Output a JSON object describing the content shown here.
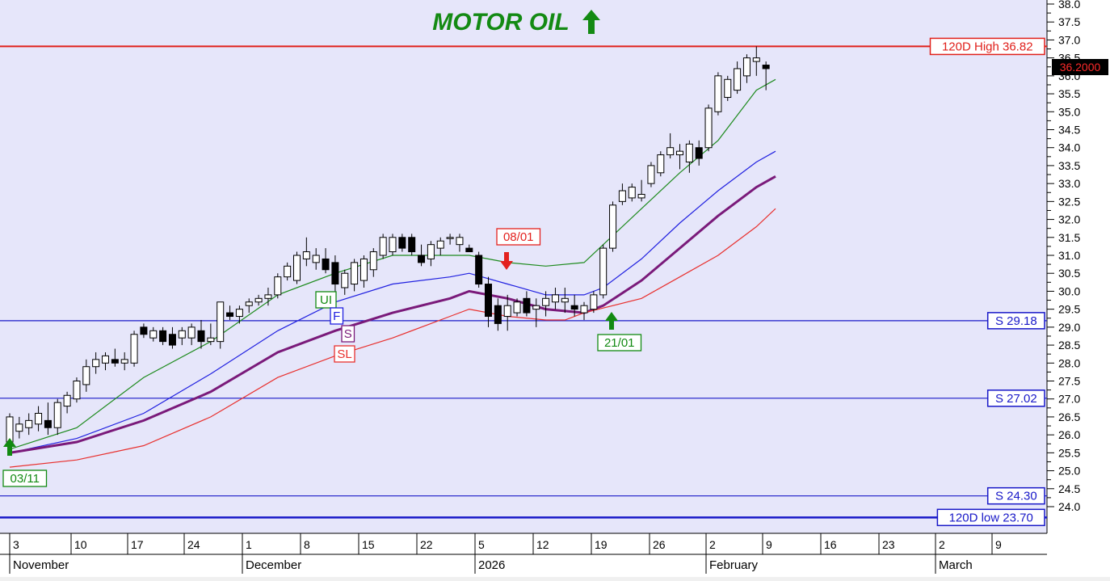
{
  "colors": {
    "plot_bg": "#e6e6fa",
    "high_line": "#e0201b",
    "support_line": "#1818c8",
    "ema_fast": "#1e8b1e",
    "ema_mid": "#2020e0",
    "ema_slow": "#7a1a7a",
    "stop_loss": "#e8302e",
    "buy_arrow": "#128a12",
    "sell_arrow": "#e3211e"
  },
  "chart_data": {
    "type": "candlestick",
    "title": "MOTOR OIL",
    "title_arrow": "up-arrow-icon",
    "ylim": [
      23.2,
      38.0
    ],
    "y_ticks": [
      "24.0",
      "24.5",
      "25.0",
      "25.5",
      "26.0",
      "26.5",
      "27.0",
      "27.5",
      "28.0",
      "28.5",
      "29.0",
      "29.5",
      "30.0",
      "30.5",
      "31.0",
      "31.5",
      "32.0",
      "32.5",
      "33.0",
      "33.5",
      "34.0",
      "34.5",
      "35.0",
      "35.5",
      "36.0",
      "36.5",
      "37.0",
      "37.5",
      "38.0"
    ],
    "x_day_labels": [
      "3",
      "10",
      "17",
      "24",
      "1",
      "8",
      "15",
      "22",
      "5",
      "12",
      "19",
      "26",
      "2",
      "9",
      "16",
      "23",
      "2",
      "9"
    ],
    "x_month_labels": [
      "November",
      "December",
      "2026",
      "February",
      "March"
    ],
    "last_price_label": "36.2000",
    "candles": [
      {
        "o": 25.8,
        "h": 26.6,
        "l": 25.6,
        "c": 26.5
      },
      {
        "o": 26.1,
        "h": 26.5,
        "l": 25.9,
        "c": 26.3
      },
      {
        "o": 26.2,
        "h": 26.6,
        "l": 26.0,
        "c": 26.4
      },
      {
        "o": 26.3,
        "h": 26.8,
        "l": 26.1,
        "c": 26.6
      },
      {
        "o": 26.4,
        "h": 26.9,
        "l": 26.0,
        "c": 26.2
      },
      {
        "o": 26.2,
        "h": 27.0,
        "l": 26.0,
        "c": 26.9
      },
      {
        "o": 26.8,
        "h": 27.2,
        "l": 26.6,
        "c": 27.1
      },
      {
        "o": 27.0,
        "h": 27.6,
        "l": 26.9,
        "c": 27.5
      },
      {
        "o": 27.4,
        "h": 28.1,
        "l": 27.2,
        "c": 27.9
      },
      {
        "o": 27.9,
        "h": 28.3,
        "l": 27.7,
        "c": 28.1
      },
      {
        "o": 28.0,
        "h": 28.3,
        "l": 27.8,
        "c": 28.2
      },
      {
        "o": 28.1,
        "h": 28.4,
        "l": 27.9,
        "c": 28.0
      },
      {
        "o": 28.0,
        "h": 28.3,
        "l": 27.8,
        "c": 28.1
      },
      {
        "o": 28.0,
        "h": 28.9,
        "l": 27.9,
        "c": 28.8
      },
      {
        "o": 29.0,
        "h": 29.1,
        "l": 28.7,
        "c": 28.8
      },
      {
        "o": 28.7,
        "h": 29.0,
        "l": 28.6,
        "c": 28.9
      },
      {
        "o": 28.9,
        "h": 29.0,
        "l": 28.5,
        "c": 28.6
      },
      {
        "o": 28.8,
        "h": 29.0,
        "l": 28.4,
        "c": 28.5
      },
      {
        "o": 28.7,
        "h": 29.0,
        "l": 28.5,
        "c": 28.9
      },
      {
        "o": 28.7,
        "h": 29.1,
        "l": 28.5,
        "c": 29.0
      },
      {
        "o": 28.9,
        "h": 29.2,
        "l": 28.4,
        "c": 28.6
      },
      {
        "o": 28.6,
        "h": 29.1,
        "l": 28.5,
        "c": 28.7
      },
      {
        "o": 28.6,
        "h": 29.7,
        "l": 28.4,
        "c": 29.7
      },
      {
        "o": 29.4,
        "h": 29.6,
        "l": 29.2,
        "c": 29.3
      },
      {
        "o": 29.3,
        "h": 29.6,
        "l": 29.1,
        "c": 29.5
      },
      {
        "o": 29.6,
        "h": 29.8,
        "l": 29.4,
        "c": 29.7
      },
      {
        "o": 29.7,
        "h": 29.9,
        "l": 29.6,
        "c": 29.8
      },
      {
        "o": 29.8,
        "h": 30.1,
        "l": 29.6,
        "c": 29.9
      },
      {
        "o": 29.9,
        "h": 30.5,
        "l": 29.8,
        "c": 30.4
      },
      {
        "o": 30.4,
        "h": 30.8,
        "l": 30.3,
        "c": 30.7
      },
      {
        "o": 30.3,
        "h": 31.1,
        "l": 30.2,
        "c": 31.0
      },
      {
        "o": 30.9,
        "h": 31.5,
        "l": 30.7,
        "c": 31.1
      },
      {
        "o": 30.8,
        "h": 31.2,
        "l": 30.6,
        "c": 31.0
      },
      {
        "o": 30.9,
        "h": 31.2,
        "l": 30.5,
        "c": 30.6
      },
      {
        "o": 30.8,
        "h": 31.0,
        "l": 29.6,
        "c": 30.2
      },
      {
        "o": 30.1,
        "h": 30.6,
        "l": 29.9,
        "c": 30.5
      },
      {
        "o": 30.2,
        "h": 30.9,
        "l": 30.0,
        "c": 30.8
      },
      {
        "o": 30.3,
        "h": 31.0,
        "l": 30.1,
        "c": 30.9
      },
      {
        "o": 30.6,
        "h": 31.2,
        "l": 30.4,
        "c": 31.1
      },
      {
        "o": 31.0,
        "h": 31.6,
        "l": 30.9,
        "c": 31.5
      },
      {
        "o": 31.1,
        "h": 31.6,
        "l": 31.0,
        "c": 31.5
      },
      {
        "o": 31.5,
        "h": 31.6,
        "l": 31.1,
        "c": 31.2
      },
      {
        "o": 31.5,
        "h": 31.6,
        "l": 31.0,
        "c": 31.1
      },
      {
        "o": 31.0,
        "h": 31.3,
        "l": 30.7,
        "c": 30.8
      },
      {
        "o": 30.9,
        "h": 31.4,
        "l": 30.7,
        "c": 31.3
      },
      {
        "o": 31.2,
        "h": 31.5,
        "l": 31.0,
        "c": 31.4
      },
      {
        "o": 31.5,
        "h": 31.6,
        "l": 31.3,
        "c": 31.5
      },
      {
        "o": 31.3,
        "h": 31.6,
        "l": 31.1,
        "c": 31.5
      },
      {
        "o": 31.2,
        "h": 31.3,
        "l": 31.1,
        "c": 31.1
      },
      {
        "o": 31.0,
        "h": 31.1,
        "l": 30.1,
        "c": 30.2
      },
      {
        "o": 30.2,
        "h": 30.4,
        "l": 29.0,
        "c": 29.3
      },
      {
        "o": 29.6,
        "h": 29.8,
        "l": 28.9,
        "c": 29.1
      },
      {
        "o": 29.3,
        "h": 29.9,
        "l": 28.9,
        "c": 29.6
      },
      {
        "o": 29.4,
        "h": 29.8,
        "l": 29.3,
        "c": 29.7
      },
      {
        "o": 29.8,
        "h": 30.0,
        "l": 29.3,
        "c": 29.4
      },
      {
        "o": 29.5,
        "h": 29.8,
        "l": 29.0,
        "c": 29.6
      },
      {
        "o": 29.6,
        "h": 30.0,
        "l": 29.3,
        "c": 29.8
      },
      {
        "o": 29.7,
        "h": 30.1,
        "l": 29.5,
        "c": 29.9
      },
      {
        "o": 29.7,
        "h": 30.1,
        "l": 29.4,
        "c": 29.8
      },
      {
        "o": 29.6,
        "h": 29.9,
        "l": 29.3,
        "c": 29.5
      },
      {
        "o": 29.4,
        "h": 29.7,
        "l": 29.2,
        "c": 29.6
      },
      {
        "o": 29.5,
        "h": 30.0,
        "l": 29.4,
        "c": 29.9
      },
      {
        "o": 29.9,
        "h": 31.3,
        "l": 29.8,
        "c": 31.2
      },
      {
        "o": 31.2,
        "h": 32.5,
        "l": 31.1,
        "c": 32.4
      },
      {
        "o": 32.5,
        "h": 33.0,
        "l": 32.4,
        "c": 32.8
      },
      {
        "o": 32.6,
        "h": 33.0,
        "l": 32.5,
        "c": 32.9
      },
      {
        "o": 32.6,
        "h": 33.1,
        "l": 32.5,
        "c": 32.7
      },
      {
        "o": 33.0,
        "h": 33.6,
        "l": 32.9,
        "c": 33.5
      },
      {
        "o": 33.3,
        "h": 33.9,
        "l": 33.2,
        "c": 33.8
      },
      {
        "o": 33.8,
        "h": 34.4,
        "l": 33.7,
        "c": 34.0
      },
      {
        "o": 33.8,
        "h": 34.1,
        "l": 33.4,
        "c": 33.9
      },
      {
        "o": 33.6,
        "h": 34.2,
        "l": 33.3,
        "c": 34.1
      },
      {
        "o": 34.0,
        "h": 34.2,
        "l": 33.5,
        "c": 33.7
      },
      {
        "o": 34.0,
        "h": 35.2,
        "l": 33.9,
        "c": 35.1
      },
      {
        "o": 35.0,
        "h": 36.1,
        "l": 34.9,
        "c": 36.0
      },
      {
        "o": 35.4,
        "h": 36.0,
        "l": 35.3,
        "c": 35.9
      },
      {
        "o": 35.6,
        "h": 36.4,
        "l": 35.5,
        "c": 36.2
      },
      {
        "o": 36.0,
        "h": 36.6,
        "l": 35.8,
        "c": 36.5
      },
      {
        "o": 36.4,
        "h": 36.82,
        "l": 36.0,
        "c": 36.5
      },
      {
        "o": 36.3,
        "h": 36.4,
        "l": 35.6,
        "c": 36.2
      }
    ],
    "series": [
      {
        "key": "ema_fast",
        "points": [
          [
            0,
            25.6
          ],
          [
            7,
            26.2
          ],
          [
            14,
            27.6
          ],
          [
            21,
            28.6
          ],
          [
            28,
            29.9
          ],
          [
            34,
            30.5
          ],
          [
            40,
            31.0
          ],
          [
            46,
            31.0
          ],
          [
            48,
            31.0
          ],
          [
            52,
            30.8
          ],
          [
            56,
            30.7
          ],
          [
            60,
            30.8
          ],
          [
            62,
            31.3
          ],
          [
            66,
            32.3
          ],
          [
            70,
            33.3
          ],
          [
            74,
            34.2
          ],
          [
            78,
            35.6
          ],
          [
            80,
            35.9
          ]
        ]
      },
      {
        "key": "ema_mid",
        "points": [
          [
            0,
            25.5
          ],
          [
            7,
            25.9
          ],
          [
            14,
            26.6
          ],
          [
            21,
            27.7
          ],
          [
            28,
            28.9
          ],
          [
            34,
            29.7
          ],
          [
            40,
            30.2
          ],
          [
            46,
            30.4
          ],
          [
            48,
            30.5
          ],
          [
            52,
            30.2
          ],
          [
            56,
            29.9
          ],
          [
            60,
            29.9
          ],
          [
            62,
            30.1
          ],
          [
            66,
            30.9
          ],
          [
            70,
            31.9
          ],
          [
            74,
            32.8
          ],
          [
            78,
            33.6
          ],
          [
            80,
            33.9
          ]
        ]
      },
      {
        "key": "ema_slow",
        "points": [
          [
            0,
            25.5
          ],
          [
            7,
            25.8
          ],
          [
            14,
            26.4
          ],
          [
            21,
            27.2
          ],
          [
            28,
            28.3
          ],
          [
            34,
            28.9
          ],
          [
            40,
            29.4
          ],
          [
            46,
            29.8
          ],
          [
            48,
            30.0
          ],
          [
            52,
            29.8
          ],
          [
            56,
            29.5
          ],
          [
            60,
            29.4
          ],
          [
            62,
            29.6
          ],
          [
            66,
            30.3
          ],
          [
            70,
            31.2
          ],
          [
            74,
            32.1
          ],
          [
            78,
            32.9
          ],
          [
            80,
            33.2
          ]
        ]
      },
      {
        "key": "stop_loss",
        "points": [
          [
            0,
            25.1
          ],
          [
            7,
            25.3
          ],
          [
            14,
            25.7
          ],
          [
            21,
            26.5
          ],
          [
            28,
            27.6
          ],
          [
            34,
            28.2
          ],
          [
            40,
            28.7
          ],
          [
            46,
            29.3
          ],
          [
            48,
            29.5
          ],
          [
            52,
            29.3
          ],
          [
            56,
            29.2
          ],
          [
            58,
            29.2
          ],
          [
            60,
            29.4
          ],
          [
            66,
            29.8
          ],
          [
            70,
            30.4
          ],
          [
            74,
            31.0
          ],
          [
            78,
            31.8
          ],
          [
            80,
            32.3
          ]
        ]
      }
    ],
    "levels": [
      {
        "label": "120D High 36.82",
        "value": 36.82,
        "style": "high"
      },
      {
        "label": "S 29.18",
        "value": 29.18,
        "style": "support"
      },
      {
        "label": "S 27.02",
        "value": 27.02,
        "style": "support"
      },
      {
        "label": "S 24.30",
        "value": 24.3,
        "style": "support"
      },
      {
        "label": "120D low 23.70",
        "value": 23.7,
        "style": "support_bold"
      }
    ],
    "annotations": [
      {
        "text": "03/11",
        "color": "#128a12",
        "kind": "buy"
      },
      {
        "text": "08/01",
        "color": "#e3211e",
        "kind": "sell"
      },
      {
        "text": "21/01",
        "color": "#128a12",
        "kind": "buy"
      },
      {
        "text": "UI",
        "color": "#128a12",
        "kind": "tag"
      },
      {
        "text": "F",
        "color": "#2020e0",
        "kind": "tag"
      },
      {
        "text": "S",
        "color": "#7a1a7a",
        "kind": "tag"
      },
      {
        "text": "SL",
        "color": "#e8302e",
        "kind": "tag"
      }
    ]
  }
}
